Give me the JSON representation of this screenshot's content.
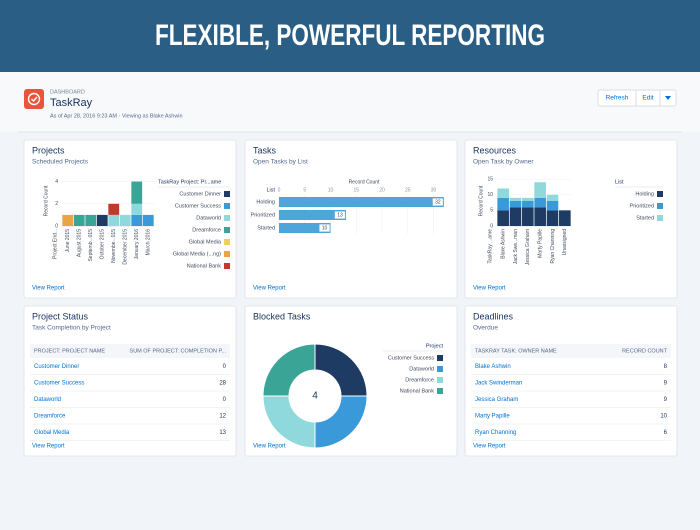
{
  "banner": {
    "title": "FLEXIBLE, POWERFUL REPORTING"
  },
  "header": {
    "label": "DASHBOARD",
    "title": "TaskRay",
    "subtitle": "As of Apr 28, 2016 9:23 AM · Viewing as Blake Ashwin",
    "buttons": [
      "Refresh",
      "Edit"
    ]
  },
  "widgets": [
    {
      "title": "Projects",
      "subtitle": "Scheduled Projects",
      "link": "View Report",
      "chart_data": {
        "type": "stacked_bar",
        "ylabel": "Record Count",
        "xlabel": "Project End...",
        "legend_title": "TaskRay Project: Pr...ame",
        "categories": [
          "June 2015",
          "August 2015",
          "Septemb...015",
          "October 2015",
          "Novembe...015",
          "December 2015",
          "January 2016",
          "March 2016"
        ],
        "series": [
          {
            "name": "Customer Dinner",
            "color": "#1d3b63",
            "values": [
              0,
              0,
              0,
              1,
              0,
              0,
              0,
              0
            ]
          },
          {
            "name": "Customer Success",
            "color": "#3a9ad9",
            "values": [
              0,
              0,
              0,
              0,
              0,
              0,
              1,
              1
            ]
          },
          {
            "name": "Dataworld",
            "color": "#8fd9dc",
            "values": [
              0,
              0,
              0,
              0,
              1,
              1,
              1,
              0
            ]
          },
          {
            "name": "Dreamforce",
            "color": "#3aa596",
            "values": [
              0,
              1,
              1,
              0,
              0,
              0,
              2,
              0
            ]
          },
          {
            "name": "Global Media",
            "color": "#f0cc6e",
            "values": [
              0,
              0,
              0,
              0,
              0,
              0,
              0,
              0
            ]
          },
          {
            "name": "Global Media (...ng)",
            "color": "#e8a445",
            "values": [
              1,
              0,
              0,
              0,
              0,
              0,
              0,
              0
            ]
          },
          {
            "name": "National Bank",
            "color": "#c0392b",
            "values": [
              0,
              0,
              0,
              0,
              1,
              0,
              0,
              0
            ]
          }
        ],
        "ylim": [
          0,
          4.5
        ],
        "yticks": [
          0,
          2,
          4
        ]
      }
    },
    {
      "title": "Tasks",
      "subtitle": "Open Tasks by List",
      "link": "View Report",
      "chart_data": {
        "type": "hbar",
        "xlabel": "Record Count",
        "ylabel": "List",
        "categories": [
          "Holding",
          "Prioritized",
          "Started"
        ],
        "values": [
          32,
          13,
          10
        ],
        "color": "#4ea5dc",
        "xlim": [
          0,
          33
        ],
        "xticks": [
          0,
          5,
          10,
          15,
          20,
          25,
          30
        ]
      }
    },
    {
      "title": "Resources",
      "subtitle": "Open Task by Owner",
      "link": "View Report",
      "chart_data": {
        "type": "stacked_bar",
        "ylabel": "Record Count",
        "xlabel": "TaskRay ...ame",
        "legend_title": "List",
        "categories": [
          "Blake Ashwin",
          "Jack Swe...man",
          "Jessica Graham",
          "Marty Papille",
          "Ryan Channing",
          "Unassigned"
        ],
        "series": [
          {
            "name": "Holding",
            "color": "#1d3b63",
            "values": [
              5,
              6,
              6,
              6,
              5,
              5
            ]
          },
          {
            "name": "Prioritized",
            "color": "#3a9ad9",
            "values": [
              4,
              2,
              2,
              3,
              3,
              0
            ]
          },
          {
            "name": "Started",
            "color": "#8fd9dc",
            "values": [
              3,
              1,
              1,
              5,
              2,
              0
            ]
          }
        ],
        "ylim": [
          0,
          16
        ],
        "yticks": [
          0,
          5,
          10,
          15
        ]
      }
    },
    {
      "title": "Project Status",
      "subtitle": "Task Completion by Project",
      "link": "View Report",
      "table": {
        "columns": [
          "PROJECT: PROJECT NAME",
          "SUM OF PROJECT: COMPLETION P..."
        ],
        "rows": [
          [
            "Customer Dinner",
            0
          ],
          [
            "Customer Success",
            28
          ],
          [
            "Dataworld",
            0
          ],
          [
            "Dreamforce",
            12
          ],
          [
            "Global Media",
            13
          ]
        ]
      }
    },
    {
      "title": "Blocked Tasks",
      "link": "View Report",
      "chart_data": {
        "type": "donut",
        "legend_title": "Project",
        "categories": [
          "Customer Success",
          "Dataworld",
          "Dreamforce",
          "National Bank"
        ],
        "values": [
          1,
          1,
          1,
          1
        ],
        "colors": [
          "#1d3b63",
          "#3a9ad9",
          "#8fd9dc",
          "#3aa596"
        ],
        "total": 4
      }
    },
    {
      "title": "Deadlines",
      "subtitle": "Overdue",
      "link": "View Report",
      "table": {
        "columns": [
          "TASKRAY TASK: OWNER NAME",
          "RECORD COUNT"
        ],
        "rows": [
          [
            "Blake Ashwin",
            8
          ],
          [
            "Jack Swinderman",
            9
          ],
          [
            "Jessica Graham",
            9
          ],
          [
            "Marty Papille",
            10
          ],
          [
            "Ryan Channing",
            6
          ]
        ]
      }
    }
  ]
}
